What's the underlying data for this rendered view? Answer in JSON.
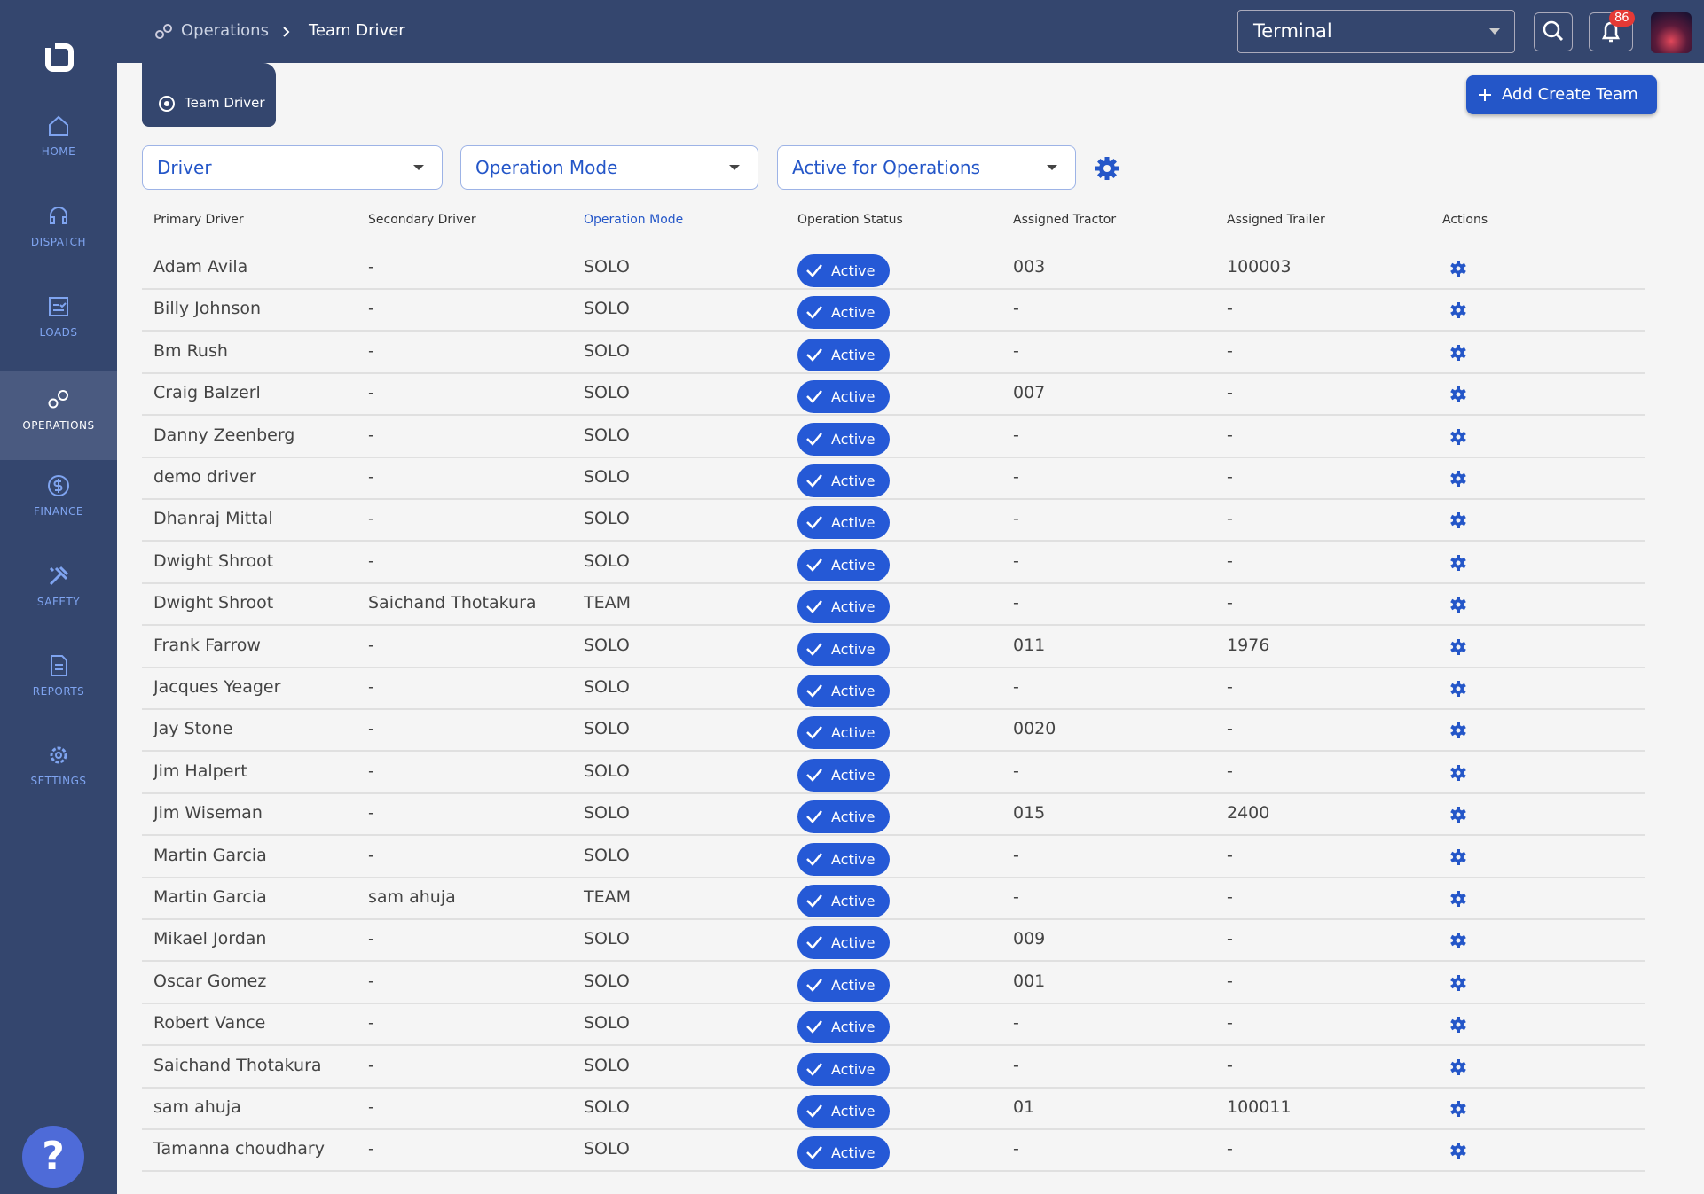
{
  "breadcrumb": {
    "parent": "Operations",
    "current": "Team Driver"
  },
  "terminal": "Terminal",
  "notifications": 86,
  "help": "?",
  "sidebar": [
    "HOME",
    "DISPATCH",
    "LOADS",
    "OPERATIONS",
    "FINANCE",
    "SAFETY",
    "REPORTS",
    "SETTINGS"
  ],
  "tab": "Team Driver",
  "add_button": "Add Create Team",
  "filters": [
    "Driver",
    "Operation Mode",
    "Active for Operations"
  ],
  "table": {
    "columns": [
      "Primary Driver",
      "Secondary Driver",
      "Operation Mode",
      "Operation Status",
      "Assigned Tractor",
      "Assigned Trailer",
      "Actions"
    ],
    "rows": [
      [
        "Adam Avila",
        "-",
        "SOLO",
        "Active",
        "003",
        "100003"
      ],
      [
        "Billy Johnson",
        "-",
        "SOLO",
        "Active",
        "-",
        "-"
      ],
      [
        "Bm Rush",
        "-",
        "SOLO",
        "Active",
        "-",
        "-"
      ],
      [
        "Craig Balzerl",
        "-",
        "SOLO",
        "Active",
        "007",
        "-"
      ],
      [
        "Danny Zeenberg",
        "-",
        "SOLO",
        "Active",
        "-",
        "-"
      ],
      [
        "demo driver",
        "-",
        "SOLO",
        "Active",
        "-",
        "-"
      ],
      [
        "Dhanraj Mittal",
        "-",
        "SOLO",
        "Active",
        "-",
        "-"
      ],
      [
        "Dwight Shroot",
        "-",
        "SOLO",
        "Active",
        "-",
        "-"
      ],
      [
        "Dwight Shroot",
        "Saichand Thotakura",
        "TEAM",
        "Active",
        "-",
        "-"
      ],
      [
        "Frank Farrow",
        "-",
        "SOLO",
        "Active",
        "011",
        "1976"
      ],
      [
        "Jacques Yeager",
        "-",
        "SOLO",
        "Active",
        "-",
        "-"
      ],
      [
        "Jay Stone",
        "-",
        "SOLO",
        "Active",
        "0020",
        "-"
      ],
      [
        "Jim Halpert",
        "-",
        "SOLO",
        "Active",
        "-",
        "-"
      ],
      [
        "Jim Wiseman",
        "-",
        "SOLO",
        "Active",
        "015",
        "2400"
      ],
      [
        "Martin Garcia",
        "-",
        "SOLO",
        "Active",
        "-",
        "-"
      ],
      [
        "Martin Garcia",
        "sam ahuja",
        "TEAM",
        "Active",
        "-",
        "-"
      ],
      [
        "Mikael Jordan",
        "-",
        "SOLO",
        "Active",
        "009",
        "-"
      ],
      [
        "Oscar Gomez",
        "-",
        "SOLO",
        "Active",
        "001",
        "-"
      ],
      [
        "Robert Vance",
        "-",
        "SOLO",
        "Active",
        "-",
        "-"
      ],
      [
        "Saichand Thotakura",
        "-",
        "SOLO",
        "Active",
        "-",
        "-"
      ],
      [
        "sam ahuja",
        "-",
        "SOLO",
        "Active",
        "01",
        "100011"
      ],
      [
        "Tamanna choudhary",
        "-",
        "SOLO",
        "Active",
        "-",
        "-"
      ]
    ]
  }
}
